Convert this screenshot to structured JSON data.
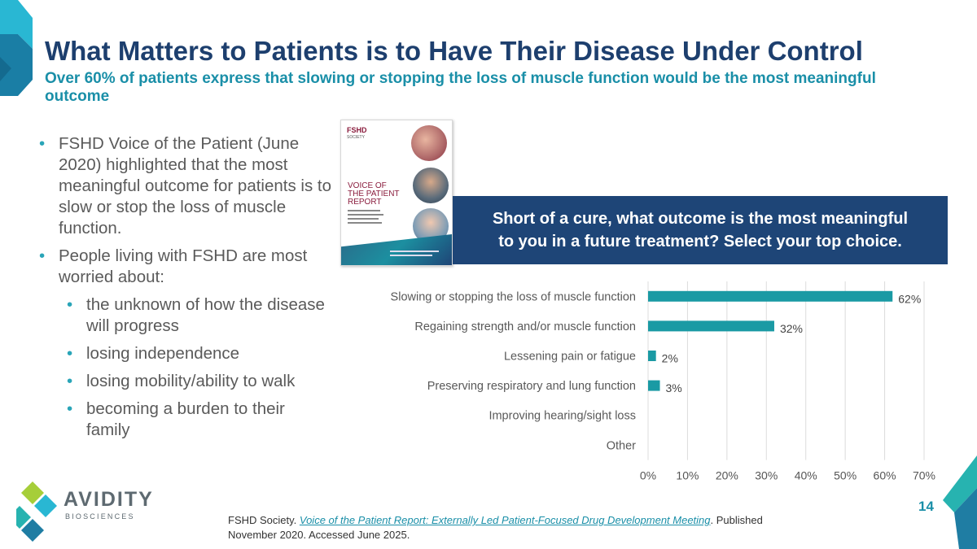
{
  "slide": {
    "title": "What Matters to Patients is to Have Their Disease Under Control",
    "subtitle": "Over 60% of patients express that slowing or stopping the loss of muscle function would be the most meaningful outcome",
    "page_number": "14"
  },
  "bullets": [
    "FSHD Voice of the Patient (June 2020) highlighted that the most meaningful outcome for patients is to slow or stop the loss of muscle function.",
    "People living with FSHD are most worried about:"
  ],
  "sub_bullets": [
    "the unknown of how the disease will progress",
    "losing independence",
    "losing mobility/ability to walk",
    "becoming a burden to their family"
  ],
  "report_cover": {
    "org_line1": "FSHD",
    "org_line2": "SOCIETY",
    "title_line1": "VOICE OF",
    "title_line2": "THE PATIENT",
    "title_line3": "REPORT"
  },
  "question": {
    "line1": "Short of a cure, what outcome is the most meaningful",
    "line2": "to you in a future treatment? Select your top choice."
  },
  "chart_data": {
    "type": "bar",
    "orientation": "horizontal",
    "categories": [
      "Slowing or stopping the loss of muscle function",
      "Regaining strength and/or muscle function",
      "Lessening pain or fatigue",
      "Preserving respiratory and lung function",
      "Improving hearing/sight loss",
      "Other"
    ],
    "values": [
      62,
      32,
      2,
      3,
      0,
      0
    ],
    "data_labels": [
      "62%",
      "32%",
      "2%",
      "3%",
      "",
      ""
    ],
    "xlim": [
      0,
      70
    ],
    "xticks": [
      "0%",
      "10%",
      "20%",
      "30%",
      "40%",
      "50%",
      "60%",
      "70%"
    ],
    "grid": true,
    "bar_color": "#1a9aa4"
  },
  "footnote": {
    "prefix": "FSHD Society. ",
    "link_text": "Voice of the Patient Report: Externally Led Patient-Focused Drug Development Meeting",
    "suffix": ". Published November 2020. Accessed June 2025."
  },
  "logo": {
    "name": "AVIDITY",
    "tagline": "BIOSCIENCES"
  },
  "colors": {
    "title": "#1d3f6e",
    "accent": "#1a8fa8",
    "question_box": "#1e4577"
  }
}
